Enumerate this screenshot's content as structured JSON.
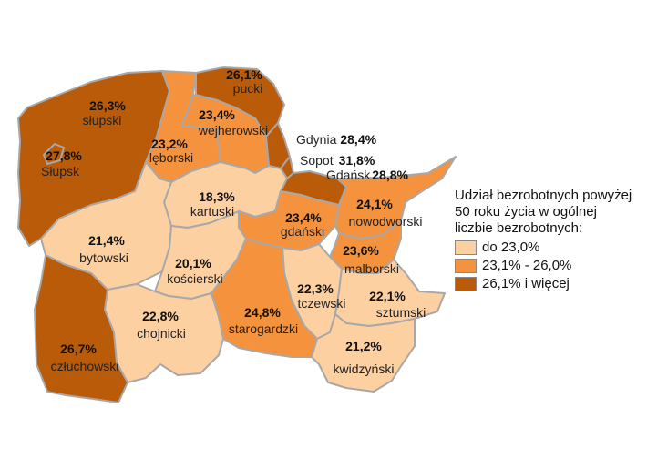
{
  "legend": {
    "title": "Udział bezrobotnych powyżej 50 roku życia w ogólnej liczbie bezrobotnych:",
    "classes": [
      {
        "label": "do 23,0%",
        "color": "#fdd0a2"
      },
      {
        "label": "23,1% - 26,0%",
        "color": "#f5923e"
      },
      {
        "label": "26,1% i więcej",
        "color": "#b95b08"
      }
    ]
  },
  "regions": [
    {
      "name": "pucki",
      "pct": "26,1%",
      "class": 2
    },
    {
      "name": "słupski",
      "pct": "26,3%",
      "class": 2
    },
    {
      "name": "wejherowski",
      "pct": "23,4%",
      "class": 1
    },
    {
      "name": "Słupsk",
      "pct": "27,8%",
      "class": 2
    },
    {
      "name": "lęborski",
      "pct": "23,2%",
      "class": 1
    },
    {
      "name": "Gdynia",
      "pct": "28,4%",
      "class": 2
    },
    {
      "name": "Sopot",
      "pct": "31,8%",
      "class": 2
    },
    {
      "name": "Gdańsk",
      "pct": "28,8%",
      "class": 2
    },
    {
      "name": "kartuski",
      "pct": "18,3%",
      "class": 0
    },
    {
      "name": "nowodworski",
      "pct": "24,1%",
      "class": 1
    },
    {
      "name": "gdański",
      "pct": "23,4%",
      "class": 1
    },
    {
      "name": "bytowski",
      "pct": "21,4%",
      "class": 0
    },
    {
      "name": "kościerski",
      "pct": "20,1%",
      "class": 0
    },
    {
      "name": "malborski",
      "pct": "23,6%",
      "class": 1
    },
    {
      "name": "tczewski",
      "pct": "22,3%",
      "class": 0
    },
    {
      "name": "sztumski",
      "pct": "22,1%",
      "class": 0
    },
    {
      "name": "chojnicki",
      "pct": "22,8%",
      "class": 0
    },
    {
      "name": "starogardzki",
      "pct": "24,8%",
      "class": 1
    },
    {
      "name": "człuchowski",
      "pct": "26,7%",
      "class": 2
    },
    {
      "name": "kwidzyński",
      "pct": "21,2%",
      "class": 0
    }
  ]
}
